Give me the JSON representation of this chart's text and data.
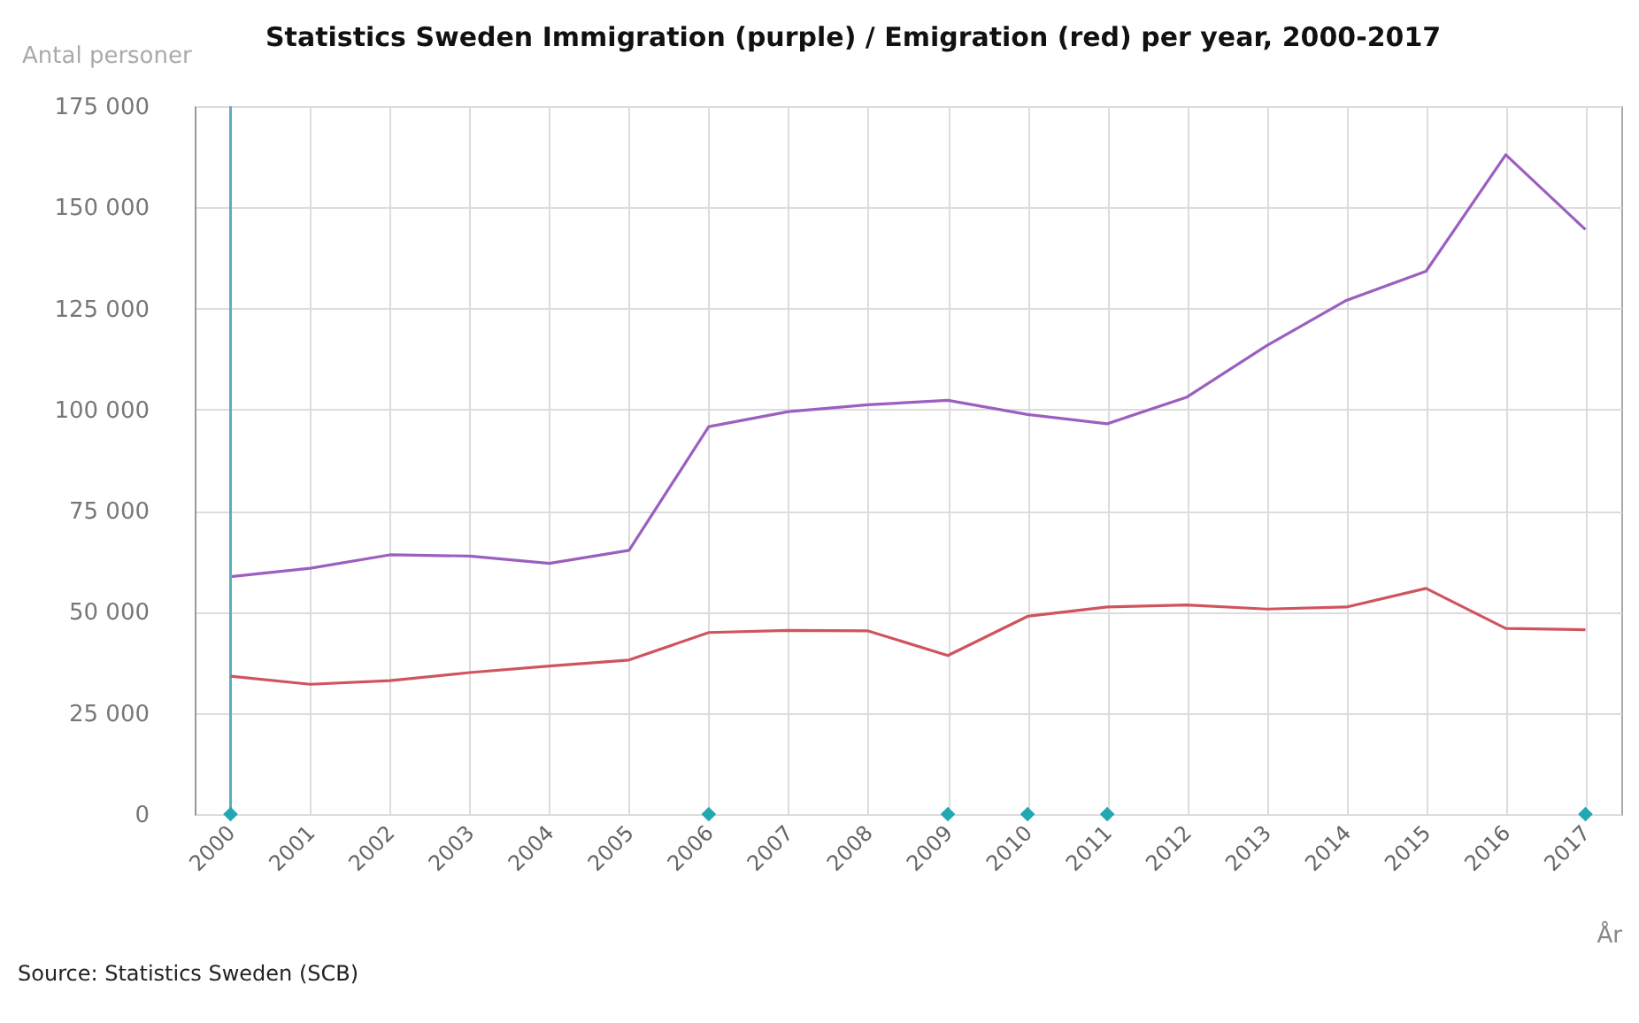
{
  "chart_data": {
    "type": "line",
    "title": "Statistics Sweden Immigration (purple) / Emigration (red) per year, 2000-2017",
    "ylabel": "Antal personer",
    "xlabel": "År",
    "annotations": [
      "Source: Statistics Sweden (SCB)"
    ],
    "categories": [
      "2000",
      "2001",
      "2002",
      "2003",
      "2004",
      "2005",
      "2006",
      "2007",
      "2008",
      "2009",
      "2010",
      "2011",
      "2012",
      "2013",
      "2014",
      "2015",
      "2016",
      "2017"
    ],
    "series": [
      {
        "color": "#9b5fc0",
        "values": [
          58700,
          60800,
          64100,
          63800,
          62000,
          65200,
          95800,
          99500,
          101200,
          102300,
          98800,
          96500,
          103100,
          115800,
          127000,
          134200,
          163000,
          144500
        ]
      },
      {
        "color": "#d0545e",
        "values": [
          34100,
          32100,
          33000,
          35000,
          36600,
          38100,
          44900,
          45400,
          45300,
          39200,
          48900,
          51200,
          51700,
          50700,
          51200,
          55800,
          45900,
          45600
        ]
      },
      {
        "type": "scatter",
        "color": "#22a8b0",
        "marker": "diamond",
        "values": [
          0,
          null,
          null,
          null,
          null,
          null,
          0,
          null,
          null,
          0,
          0,
          0,
          null,
          null,
          null,
          null,
          null,
          0
        ]
      }
    ],
    "ylim": [
      0,
      175000
    ],
    "yticks": [
      0,
      {
        "value": 25000,
        "label": "25 000"
      },
      {
        "value": 50000,
        "label": "50 000"
      },
      {
        "value": 75000,
        "label": "75 000"
      },
      {
        "value": 100000,
        "label": "100 000"
      },
      {
        "value": 125000,
        "label": "125 000"
      },
      {
        "value": 150000,
        "label": "150 000"
      },
      {
        "value": 175000,
        "label": "175 000"
      }
    ],
    "ref_lines": [
      {
        "axis": "x",
        "value": "2000",
        "color": "#5aaec0"
      }
    ],
    "grid": true,
    "marker": "none",
    "line_style": "solid"
  }
}
